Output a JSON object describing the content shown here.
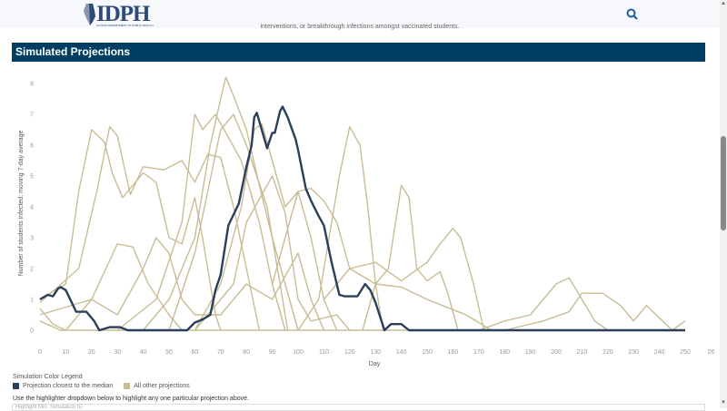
{
  "header": {
    "logo_text": "IDPH",
    "logo_subtext": "ILLINOIS DEPARTMENT OF PUBLIC HEALTH",
    "search_icon": "search-icon"
  },
  "intro_text": "interventions, or breakthrough infections amongst vaccinated students.",
  "section_title": "Simulated Projections",
  "legend": {
    "title": "Simulation Color Legend",
    "items": [
      {
        "label": "Projection closest to the median",
        "color": "#2a3f5a"
      },
      {
        "label": "All other projections",
        "color": "#c8bd96"
      }
    ]
  },
  "hint_text": "Use the highlighter dropdown below to highlight any one particular projection above.",
  "dropdown_placeholder": "Highlight Min. Simulation ID",
  "chart_data": {
    "type": "line",
    "xlabel": "Day",
    "ylabel": "Number of students infected: moving 7-day average",
    "xlim": [
      0,
      260
    ],
    "ylim": [
      0,
      8
    ],
    "xticks": [
      "0",
      "10",
      "20",
      "30",
      "40",
      "50",
      "60",
      "70",
      "80",
      "90",
      "100",
      "110",
      "120",
      "130",
      "140",
      "150",
      "160",
      "170",
      "180",
      "190",
      "200",
      "210",
      "220",
      "230",
      "240",
      "250",
      "26"
    ],
    "yticks": [
      "0",
      "1",
      "2",
      "3",
      "4",
      "5",
      "6",
      "7",
      "8"
    ],
    "grid": false,
    "median_series": {
      "color": "#2a3f5a",
      "points": [
        [
          0,
          1
        ],
        [
          3,
          1.15
        ],
        [
          5,
          1.1
        ],
        [
          7,
          1.35
        ],
        [
          8,
          1.4
        ],
        [
          10,
          1.3
        ],
        [
          14,
          0.6
        ],
        [
          18,
          0.6
        ],
        [
          21,
          0.3
        ],
        [
          23,
          0
        ],
        [
          27,
          0.1
        ],
        [
          31,
          0.1
        ],
        [
          34,
          0
        ],
        [
          57,
          0
        ],
        [
          60,
          0.25
        ],
        [
          63,
          0.35
        ],
        [
          66,
          0.5
        ],
        [
          68,
          1.3
        ],
        [
          70,
          1.8
        ],
        [
          73,
          3.4
        ],
        [
          77,
          4.1
        ],
        [
          80,
          5.3
        ],
        [
          82,
          6.0
        ],
        [
          83,
          6.9
        ],
        [
          84,
          7.05
        ],
        [
          88,
          5.9
        ],
        [
          90,
          6.4
        ],
        [
          91,
          6.4
        ],
        [
          93,
          7.1
        ],
        [
          94,
          7.25
        ],
        [
          96,
          6.9
        ],
        [
          99,
          6.2
        ],
        [
          100,
          5.85
        ],
        [
          103,
          4.6
        ],
        [
          105,
          4.2
        ],
        [
          108,
          3.7
        ],
        [
          110,
          3.4
        ],
        [
          113,
          2.2
        ],
        [
          116,
          1.15
        ],
        [
          118,
          1.1
        ],
        [
          123,
          1.1
        ],
        [
          126,
          1.5
        ],
        [
          128,
          1.3
        ],
        [
          130,
          0.9
        ],
        [
          133.5,
          0
        ],
        [
          136,
          0.2
        ],
        [
          140,
          0.2
        ],
        [
          143,
          0
        ],
        [
          250,
          0
        ]
      ]
    },
    "other_series": {
      "color": "#c8bd96",
      "series": [
        [
          [
            0,
            1
          ],
          [
            10,
            1.5
          ],
          [
            15,
            4.5
          ],
          [
            20,
            6.5
          ],
          [
            25,
            6.1
          ],
          [
            28,
            5.1
          ],
          [
            32,
            4.3
          ],
          [
            35,
            4.6
          ],
          [
            40,
            5.1
          ],
          [
            45,
            4.8
          ],
          [
            50,
            3.0
          ],
          [
            55,
            2.8
          ],
          [
            60,
            4.3
          ],
          [
            63,
            3.0
          ],
          [
            68,
            0.5
          ],
          [
            70,
            0
          ]
        ],
        [
          [
            0,
            0.9
          ],
          [
            15,
            2
          ],
          [
            22,
            4.5
          ],
          [
            27,
            6.6
          ],
          [
            30,
            6.3
          ],
          [
            35,
            4.4
          ],
          [
            40,
            5.3
          ],
          [
            48,
            5.2
          ],
          [
            55,
            5.5
          ],
          [
            60,
            4.8
          ],
          [
            65,
            5.7
          ],
          [
            70,
            5.6
          ],
          [
            75,
            4.0
          ],
          [
            80,
            2
          ],
          [
            85,
            0
          ]
        ],
        [
          [
            0,
            0.5
          ],
          [
            20,
            1
          ],
          [
            30,
            2.8
          ],
          [
            36,
            2.7
          ],
          [
            42,
            1.5
          ],
          [
            50,
            0.5
          ],
          [
            55,
            0
          ]
        ],
        [
          [
            40,
            0
          ],
          [
            50,
            1
          ],
          [
            60,
            3
          ],
          [
            66,
            6
          ],
          [
            70,
            7.5
          ],
          [
            72,
            8.2
          ],
          [
            75,
            7.6
          ],
          [
            80,
            6.5
          ],
          [
            85,
            4.7
          ],
          [
            90,
            3
          ],
          [
            95,
            1.5
          ],
          [
            100,
            0
          ]
        ],
        [
          [
            30,
            0
          ],
          [
            45,
            1
          ],
          [
            55,
            3.5
          ],
          [
            60,
            7.0
          ],
          [
            63,
            6.5
          ],
          [
            68,
            7.0
          ],
          [
            72,
            6.4
          ],
          [
            78,
            5.5
          ],
          [
            85,
            3.5
          ],
          [
            90,
            1.5
          ],
          [
            95,
            0
          ]
        ],
        [
          [
            50,
            0
          ],
          [
            60,
            2.5
          ],
          [
            65,
            4.5
          ],
          [
            70,
            6.5
          ],
          [
            75,
            7.0
          ],
          [
            80,
            6.0
          ],
          [
            88,
            4
          ],
          [
            92,
            2
          ],
          [
            96,
            0
          ]
        ],
        [
          [
            60,
            0
          ],
          [
            70,
            1.5
          ],
          [
            78,
            4
          ],
          [
            83,
            6.5
          ],
          [
            86,
            6.7
          ],
          [
            90,
            5.5
          ],
          [
            95,
            4
          ],
          [
            100,
            4.5
          ],
          [
            105,
            3
          ],
          [
            110,
            1
          ],
          [
            115,
            0
          ]
        ],
        [
          [
            100,
            0
          ],
          [
            108,
            1
          ],
          [
            112,
            3
          ],
          [
            116,
            5
          ],
          [
            120,
            6.6
          ],
          [
            124,
            6
          ],
          [
            127,
            4
          ],
          [
            130,
            1.5
          ],
          [
            133,
            0
          ]
        ],
        [
          [
            125,
            0
          ],
          [
            130,
            1.5
          ],
          [
            135,
            2
          ],
          [
            140,
            4.7
          ],
          [
            143,
            4.3
          ],
          [
            146,
            2
          ],
          [
            150,
            1.6
          ],
          [
            155,
            1.9
          ],
          [
            158,
            1.2
          ],
          [
            162,
            0
          ]
        ],
        [
          [
            110,
            1
          ],
          [
            120,
            2
          ],
          [
            130,
            2.2
          ],
          [
            140,
            1.6
          ],
          [
            150,
            2.2
          ],
          [
            155,
            2.8
          ],
          [
            160,
            3.3
          ],
          [
            163,
            3.0
          ],
          [
            168,
            1.5
          ],
          [
            172,
            0
          ]
        ],
        [
          [
            90,
            1.5
          ],
          [
            100,
            4.5
          ],
          [
            105,
            4.6
          ],
          [
            110,
            4.2
          ],
          [
            115,
            3.5
          ],
          [
            120,
            2
          ],
          [
            130,
            1.5
          ],
          [
            140,
            1.4
          ],
          [
            150,
            1
          ],
          [
            165,
            0.5
          ],
          [
            175,
            0
          ]
        ],
        [
          [
            170,
            0
          ],
          [
            180,
            0.3
          ],
          [
            190,
            0.5
          ],
          [
            200,
            1.5
          ],
          [
            205,
            1.7
          ],
          [
            210,
            1.0
          ],
          [
            215,
            0.3
          ],
          [
            220,
            0
          ]
        ],
        [
          [
            180,
            0
          ],
          [
            195,
            0.3
          ],
          [
            205,
            0.6
          ],
          [
            210,
            1.2
          ],
          [
            218,
            1.2
          ],
          [
            225,
            0.8
          ],
          [
            230,
            0.3
          ],
          [
            235,
            0.8
          ],
          [
            240,
            0.4
          ],
          [
            245,
            0
          ],
          [
            250,
            0.3
          ]
        ],
        [
          [
            0,
            0.7
          ],
          [
            5,
            0.2
          ],
          [
            10,
            0
          ],
          [
            20,
            1
          ],
          [
            30,
            0.5
          ],
          [
            40,
            2
          ],
          [
            45,
            3
          ],
          [
            50,
            2.5
          ],
          [
            55,
            1
          ],
          [
            60,
            0.5
          ],
          [
            70,
            0.5
          ],
          [
            80,
            1.5
          ],
          [
            90,
            1.0
          ],
          [
            100,
            2.5
          ],
          [
            105,
            1.0
          ],
          [
            110,
            0
          ]
        ],
        [
          [
            60,
            0
          ],
          [
            75,
            1.5
          ],
          [
            80,
            3.5
          ],
          [
            90,
            5
          ],
          [
            95,
            3.8
          ],
          [
            100,
            1
          ],
          [
            105,
            0.3
          ],
          [
            115,
            0.5
          ],
          [
            120,
            0
          ]
        ],
        [
          [
            0,
            0.3
          ],
          [
            8,
            0
          ],
          [
            250,
            0
          ]
        ]
      ]
    }
  }
}
